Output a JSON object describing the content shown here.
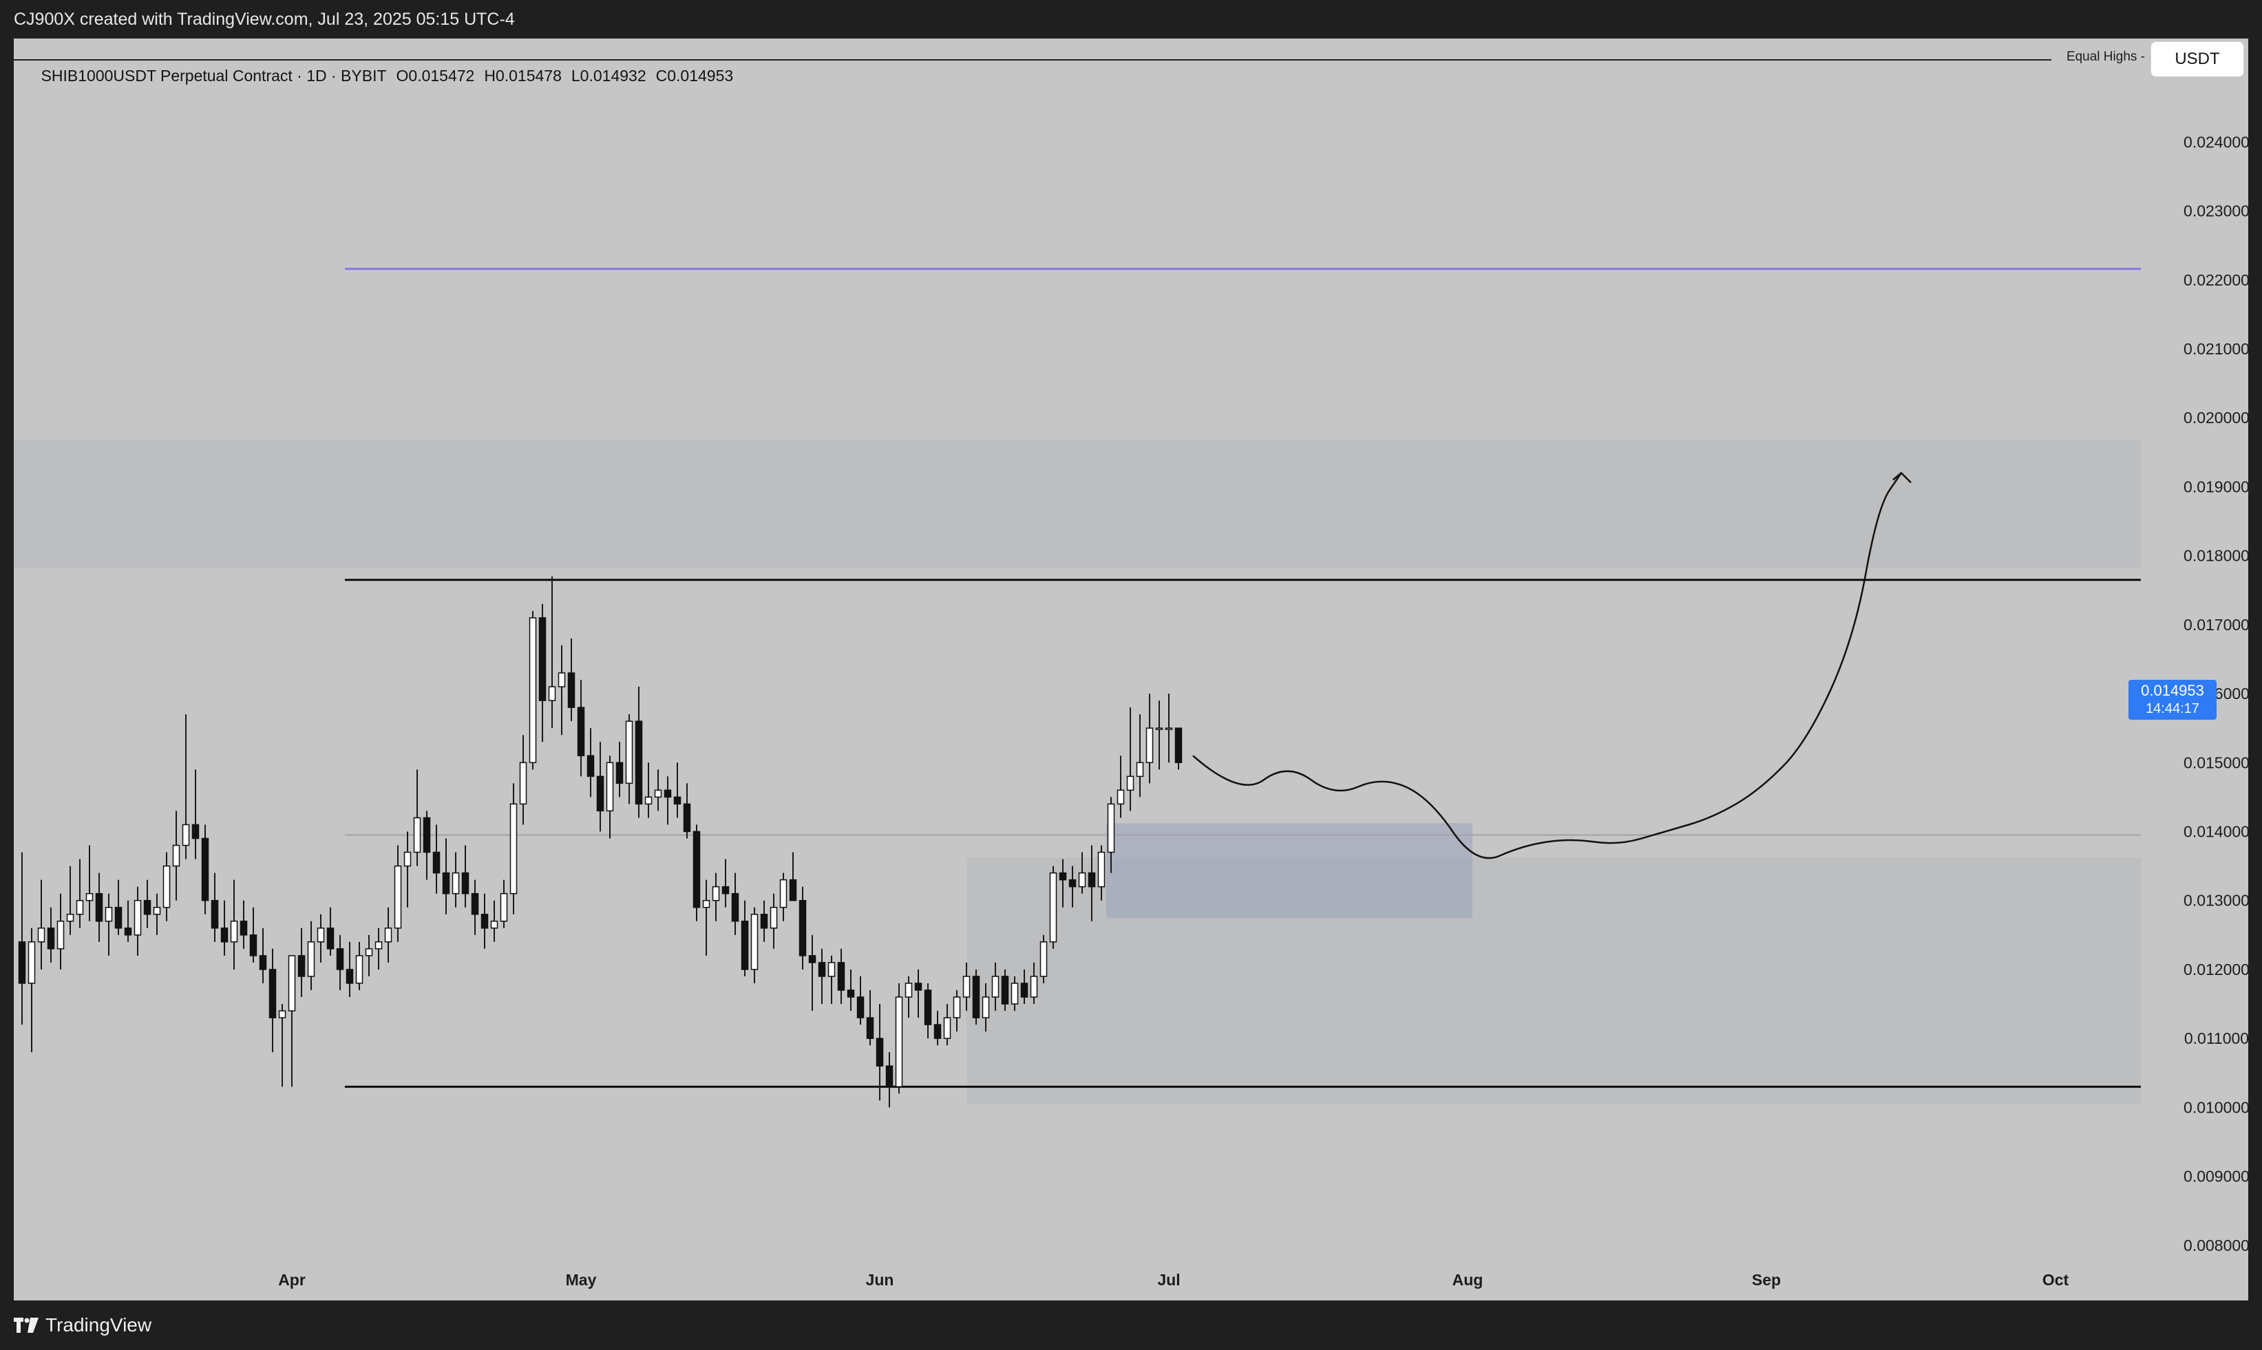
{
  "header": {
    "attribution": "CJ900X created with TradingView.com, Jul 23, 2025 05:15 UTC-4"
  },
  "legend": {
    "symbol": "SHIB1000USDT Perpetual Contract · 1D · BYBIT",
    "open": "O0.015472",
    "high": "H0.015478",
    "low": "L0.014932",
    "close": "C0.014953"
  },
  "toolbar": {
    "currency": "USDT",
    "equal_highs": "Equal Highs -"
  },
  "last_price": {
    "value": "0.014953",
    "countdown": "14:44:17"
  },
  "footer": {
    "brand": "TradingView"
  },
  "colors": {
    "background": "#c6c6c6",
    "frame": "#1f1f1f",
    "bull_body": "#ffffff",
    "bear_body": "#121212",
    "wick": "#1a1a1a",
    "zone": "#b2b4b8",
    "purple_line": "#8877dd",
    "price_tag": "#2f7bf5"
  },
  "chart_data": {
    "type": "candlestick",
    "title": "SHIB1000USDT Perpetual Contract · 1D · BYBIT",
    "ylim": [
      0.0072,
      0.0255
    ],
    "y_ticks": [
      "0.008000",
      "0.009000",
      "0.010000",
      "0.011000",
      "0.012000",
      "0.013000",
      "0.014000",
      "0.015000",
      "0.016000",
      "0.017000",
      "0.018000",
      "0.019000",
      "0.020000",
      "0.021000",
      "0.022000",
      "0.023000",
      "0.024000"
    ],
    "x_labels": [
      {
        "label": "Apr",
        "date": "2025-04-01"
      },
      {
        "label": "May",
        "date": "2025-05-01"
      },
      {
        "label": "Jun",
        "date": "2025-06-01"
      },
      {
        "label": "Jul",
        "date": "2025-07-01"
      },
      {
        "label": "Aug",
        "date": "2025-08-01"
      },
      {
        "label": "Sep",
        "date": "2025-09-01"
      },
      {
        "label": "Oct",
        "date": "2025-10-01"
      }
    ],
    "grid": false,
    "first_candle_date": "2025-03-04",
    "candles": [
      [
        0.0124,
        0.0137,
        0.0112,
        0.0118
      ],
      [
        0.0118,
        0.0126,
        0.0108,
        0.0124
      ],
      [
        0.0124,
        0.0133,
        0.012,
        0.0126
      ],
      [
        0.0126,
        0.0129,
        0.0121,
        0.0123
      ],
      [
        0.0123,
        0.0131,
        0.012,
        0.0127
      ],
      [
        0.0127,
        0.0135,
        0.0125,
        0.0128
      ],
      [
        0.0128,
        0.0136,
        0.0126,
        0.013
      ],
      [
        0.013,
        0.0138,
        0.0127,
        0.0131
      ],
      [
        0.0131,
        0.0134,
        0.0124,
        0.0127
      ],
      [
        0.0127,
        0.0131,
        0.0122,
        0.0129
      ],
      [
        0.0129,
        0.0133,
        0.0125,
        0.0126
      ],
      [
        0.0126,
        0.013,
        0.0124,
        0.0125
      ],
      [
        0.0125,
        0.0132,
        0.0122,
        0.013
      ],
      [
        0.013,
        0.0133,
        0.0126,
        0.0128
      ],
      [
        0.0128,
        0.0131,
        0.0125,
        0.0129
      ],
      [
        0.0129,
        0.0137,
        0.0127,
        0.0135
      ],
      [
        0.0135,
        0.0143,
        0.013,
        0.0138
      ],
      [
        0.0138,
        0.0157,
        0.0136,
        0.0141
      ],
      [
        0.0141,
        0.0149,
        0.0136,
        0.0139
      ],
      [
        0.0139,
        0.0141,
        0.0128,
        0.013
      ],
      [
        0.013,
        0.0134,
        0.0124,
        0.0126
      ],
      [
        0.0126,
        0.013,
        0.0122,
        0.0124
      ],
      [
        0.0124,
        0.0133,
        0.012,
        0.0127
      ],
      [
        0.0127,
        0.013,
        0.0123,
        0.0125
      ],
      [
        0.0125,
        0.0129,
        0.0121,
        0.0122
      ],
      [
        0.0122,
        0.0126,
        0.0118,
        0.012
      ],
      [
        0.012,
        0.0123,
        0.0108,
        0.0113
      ],
      [
        0.0113,
        0.0115,
        0.0103,
        0.0114
      ],
      [
        0.0114,
        0.0121,
        0.0103,
        0.0122
      ],
      [
        0.0122,
        0.0126,
        0.0116,
        0.0119
      ],
      [
        0.0119,
        0.0127,
        0.0117,
        0.0124
      ],
      [
        0.0124,
        0.0128,
        0.0121,
        0.0126
      ],
      [
        0.0126,
        0.0129,
        0.0122,
        0.0123
      ],
      [
        0.0123,
        0.0125,
        0.0117,
        0.012
      ],
      [
        0.012,
        0.0124,
        0.0116,
        0.0118
      ],
      [
        0.0118,
        0.0124,
        0.0117,
        0.0122
      ],
      [
        0.0122,
        0.0125,
        0.0119,
        0.0123
      ],
      [
        0.0123,
        0.0126,
        0.012,
        0.0124
      ],
      [
        0.0124,
        0.0129,
        0.0121,
        0.0126
      ],
      [
        0.0126,
        0.0138,
        0.0124,
        0.0135
      ],
      [
        0.0135,
        0.014,
        0.0129,
        0.0137
      ],
      [
        0.0137,
        0.0149,
        0.0135,
        0.0142
      ],
      [
        0.0142,
        0.0143,
        0.0133,
        0.0137
      ],
      [
        0.0137,
        0.0141,
        0.0131,
        0.0134
      ],
      [
        0.0134,
        0.0139,
        0.0128,
        0.0131
      ],
      [
        0.0131,
        0.0137,
        0.0129,
        0.0134
      ],
      [
        0.0134,
        0.0138,
        0.0129,
        0.0131
      ],
      [
        0.0131,
        0.0133,
        0.0125,
        0.0128
      ],
      [
        0.0128,
        0.0131,
        0.0123,
        0.0126
      ],
      [
        0.0126,
        0.013,
        0.0124,
        0.0127
      ],
      [
        0.0127,
        0.0133,
        0.0126,
        0.0131
      ],
      [
        0.0131,
        0.0147,
        0.0128,
        0.0144
      ],
      [
        0.0144,
        0.0154,
        0.0141,
        0.015
      ],
      [
        0.015,
        0.0172,
        0.0149,
        0.0171
      ],
      [
        0.0171,
        0.0173,
        0.0153,
        0.0159
      ],
      [
        0.0159,
        0.0177,
        0.0155,
        0.0161
      ],
      [
        0.0161,
        0.0167,
        0.0154,
        0.0163
      ],
      [
        0.0163,
        0.0168,
        0.0156,
        0.0158
      ],
      [
        0.0158,
        0.0162,
        0.0148,
        0.0151
      ],
      [
        0.0151,
        0.0155,
        0.0145,
        0.0148
      ],
      [
        0.0148,
        0.0153,
        0.014,
        0.0143
      ],
      [
        0.0143,
        0.0151,
        0.0139,
        0.015
      ],
      [
        0.015,
        0.0153,
        0.0145,
        0.0147
      ],
      [
        0.0147,
        0.0157,
        0.0144,
        0.0156
      ],
      [
        0.0156,
        0.0161,
        0.0142,
        0.0144
      ],
      [
        0.0144,
        0.015,
        0.0142,
        0.0145
      ],
      [
        0.0145,
        0.0149,
        0.0143,
        0.0146
      ],
      [
        0.0146,
        0.0148,
        0.0141,
        0.0145
      ],
      [
        0.0145,
        0.015,
        0.0142,
        0.0144
      ],
      [
        0.0144,
        0.0147,
        0.0139,
        0.014
      ],
      [
        0.014,
        0.0141,
        0.0127,
        0.0129
      ],
      [
        0.0129,
        0.0133,
        0.0122,
        0.013
      ],
      [
        0.013,
        0.0134,
        0.0127,
        0.0132
      ],
      [
        0.0132,
        0.0136,
        0.0129,
        0.0131
      ],
      [
        0.0131,
        0.0134,
        0.0125,
        0.0127
      ],
      [
        0.0127,
        0.013,
        0.0119,
        0.012
      ],
      [
        0.012,
        0.0129,
        0.0118,
        0.0128
      ],
      [
        0.0128,
        0.013,
        0.0124,
        0.0126
      ],
      [
        0.0126,
        0.0131,
        0.0123,
        0.0129
      ],
      [
        0.0129,
        0.0134,
        0.0127,
        0.0133
      ],
      [
        0.0133,
        0.0137,
        0.013,
        0.013
      ],
      [
        0.013,
        0.0132,
        0.012,
        0.0122
      ],
      [
        0.0122,
        0.0125,
        0.0114,
        0.0121
      ],
      [
        0.0121,
        0.0123,
        0.0115,
        0.0119
      ],
      [
        0.0119,
        0.0122,
        0.0115,
        0.0121
      ],
      [
        0.0121,
        0.0123,
        0.0115,
        0.0117
      ],
      [
        0.0117,
        0.012,
        0.0114,
        0.0116
      ],
      [
        0.0116,
        0.0119,
        0.0112,
        0.0113
      ],
      [
        0.0113,
        0.0117,
        0.0109,
        0.011
      ],
      [
        0.011,
        0.0115,
        0.0101,
        0.0106
      ],
      [
        0.0106,
        0.0108,
        0.01,
        0.0103
      ],
      [
        0.0103,
        0.0118,
        0.0102,
        0.0116
      ],
      [
        0.0116,
        0.0119,
        0.0113,
        0.0118
      ],
      [
        0.0118,
        0.012,
        0.0113,
        0.0117
      ],
      [
        0.0117,
        0.0118,
        0.011,
        0.0112
      ],
      [
        0.0112,
        0.0114,
        0.0109,
        0.011
      ],
      [
        0.011,
        0.0115,
        0.0109,
        0.0113
      ],
      [
        0.0113,
        0.0117,
        0.0111,
        0.0116
      ],
      [
        0.0116,
        0.0121,
        0.0114,
        0.0119
      ],
      [
        0.0119,
        0.012,
        0.0112,
        0.0113
      ],
      [
        0.0113,
        0.0118,
        0.0111,
        0.0116
      ],
      [
        0.0116,
        0.0121,
        0.0114,
        0.0119
      ],
      [
        0.0119,
        0.012,
        0.0114,
        0.0115
      ],
      [
        0.0115,
        0.0119,
        0.0114,
        0.0118
      ],
      [
        0.0118,
        0.012,
        0.0115,
        0.0116
      ],
      [
        0.0116,
        0.0121,
        0.0115,
        0.0119
      ],
      [
        0.0119,
        0.0125,
        0.0118,
        0.0124
      ],
      [
        0.0124,
        0.0135,
        0.0123,
        0.0134
      ],
      [
        0.0134,
        0.0136,
        0.0129,
        0.0133
      ],
      [
        0.0133,
        0.0135,
        0.0129,
        0.0132
      ],
      [
        0.0132,
        0.0137,
        0.0131,
        0.0134
      ],
      [
        0.0134,
        0.0138,
        0.0127,
        0.0132
      ],
      [
        0.0132,
        0.0138,
        0.013,
        0.0137
      ],
      [
        0.0137,
        0.0145,
        0.0134,
        0.0144
      ],
      [
        0.0144,
        0.0151,
        0.0142,
        0.0146
      ],
      [
        0.0146,
        0.0158,
        0.0143,
        0.0148
      ],
      [
        0.0148,
        0.0157,
        0.0145,
        0.015
      ],
      [
        0.015,
        0.016,
        0.0147,
        0.0155
      ],
      [
        0.0155,
        0.0159,
        0.0149,
        0.0155
      ],
      [
        0.0155,
        0.016,
        0.015,
        0.0155
      ],
      [
        0.0155,
        0.0155,
        0.0149,
        0.015
      ]
    ],
    "levels": [
      {
        "name": "upper-line",
        "value": 0.01765
      },
      {
        "name": "lower-line",
        "value": 0.0103
      },
      {
        "name": "mid-line",
        "value": 0.01395
      },
      {
        "name": "purple-line",
        "value": 0.02216
      }
    ],
    "zones": [
      {
        "name": "resistance-zone",
        "y0": 0.01782,
        "y1": 0.01968
      },
      {
        "name": "demand-zone-lower",
        "y0": 0.01005,
        "y1": 0.01362
      },
      {
        "name": "demand-zone-upper",
        "y0": 0.01275,
        "y1": 0.01412
      }
    ],
    "projection": [
      [
        0,
        0.0151
      ],
      [
        2,
        0.0145
      ],
      [
        4,
        0.015
      ],
      [
        6,
        0.0145
      ],
      [
        8,
        0.0148
      ],
      [
        10,
        0.0145
      ],
      [
        12,
        0.0135
      ],
      [
        14,
        0.0138
      ],
      [
        16,
        0.0139
      ],
      [
        18,
        0.0138
      ],
      [
        20,
        0.014
      ],
      [
        22,
        0.0142
      ],
      [
        24,
        0.0146
      ],
      [
        26,
        0.0153
      ],
      [
        28,
        0.0168
      ],
      [
        29,
        0.0187
      ],
      [
        30,
        0.0192
      ]
    ]
  }
}
